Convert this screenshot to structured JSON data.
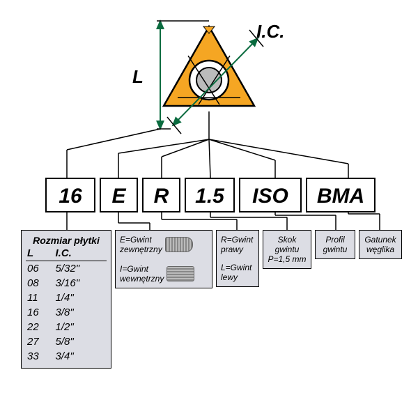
{
  "labels": {
    "L": "L",
    "IC": "I.C."
  },
  "codes": {
    "c1": "16",
    "c2": "E",
    "c3": "R",
    "c4": "1.5",
    "c5": "ISO",
    "c6": "BMA"
  },
  "panel1": {
    "title": "Rozmiar płytki",
    "col1": "L",
    "col2": "I.C.",
    "rows": [
      {
        "l": "06",
        "ic": "5/32\""
      },
      {
        "l": "08",
        "ic": "3/16\""
      },
      {
        "l": "11",
        "ic": "1/4\""
      },
      {
        "l": "16",
        "ic": "3/8\""
      },
      {
        "l": "22",
        "ic": "1/2\""
      },
      {
        "l": "27",
        "ic": "5/8\""
      },
      {
        "l": "33",
        "ic": "3/4\""
      }
    ]
  },
  "panel2": {
    "line1a": "E=Gwint",
    "line1b": "zewnętrzny",
    "line2a": "I=Gwint",
    "line2b": "wewnętrzny"
  },
  "panel3": {
    "line1a": "R=Gwint",
    "line1b": "prawy",
    "line2a": "L=Gwint",
    "line2b": "lewy"
  },
  "panel4": {
    "line1": "Skok",
    "line2": "gwintu",
    "line3": "P=1,5 mm"
  },
  "panel5": {
    "line1": "Profil",
    "line2": "gwintu"
  },
  "panel6": {
    "line1": "Gatunek",
    "line2": "węglika"
  },
  "colors": {
    "insert_fill": "#f5a623",
    "insert_stroke": "#000000",
    "arrow": "#0a6b3f",
    "panel_bg": "#dcdde4",
    "box_border": "#000000"
  }
}
